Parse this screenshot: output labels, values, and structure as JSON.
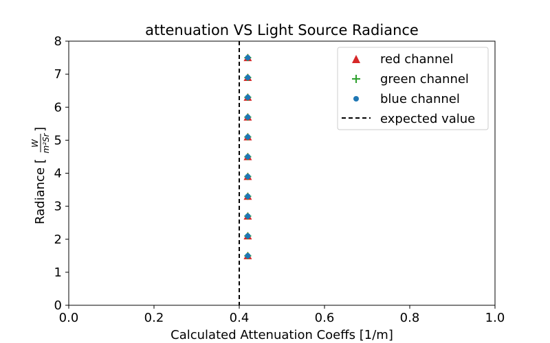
{
  "chart_data": {
    "type": "scatter",
    "title": "attenuation VS Light Source Radiance",
    "xlabel": "Calculated Attenuation Coeffs [1/m]",
    "ylabel": {
      "prefix": "Radiance [",
      "numerator": "W",
      "denominator": "m²Sr",
      "suffix": "]"
    },
    "xlim": [
      0.0,
      1.0
    ],
    "ylim": [
      0,
      8
    ],
    "xticks": [
      "0.0",
      "0.2",
      "0.4",
      "0.6",
      "0.8",
      "1.0"
    ],
    "yticks": [
      "0",
      "1",
      "2",
      "3",
      "4",
      "5",
      "6",
      "7",
      "8"
    ],
    "grid": false,
    "legend_position": "upper right",
    "series": [
      {
        "name": "red channel",
        "marker": "triangle",
        "color": "#d62728",
        "x": [
          0.42,
          0.42,
          0.42,
          0.42,
          0.42,
          0.42,
          0.42,
          0.42,
          0.42,
          0.42,
          0.42
        ],
        "y": [
          1.5,
          2.1,
          2.7,
          3.3,
          3.9,
          4.5,
          5.1,
          5.7,
          6.3,
          6.9,
          7.5
        ]
      },
      {
        "name": "green channel",
        "marker": "plus",
        "color": "#2ca02c",
        "x": [
          0.42,
          0.42,
          0.42,
          0.42,
          0.42,
          0.42,
          0.42,
          0.42,
          0.42,
          0.42,
          0.42
        ],
        "y": [
          1.5,
          2.1,
          2.7,
          3.3,
          3.9,
          4.5,
          5.1,
          5.7,
          6.3,
          6.9,
          7.5
        ]
      },
      {
        "name": "blue channel",
        "marker": "circle",
        "color": "#1f77b4",
        "x": [
          0.42,
          0.42,
          0.42,
          0.42,
          0.42,
          0.42,
          0.42,
          0.42,
          0.42,
          0.42,
          0.42
        ],
        "y": [
          1.5,
          2.1,
          2.7,
          3.3,
          3.9,
          4.5,
          5.1,
          5.7,
          6.3,
          6.9,
          7.5
        ]
      }
    ],
    "reference_line": {
      "name": "expected value",
      "orientation": "vertical",
      "x": 0.4,
      "style": "dashed",
      "color": "#000000"
    }
  }
}
